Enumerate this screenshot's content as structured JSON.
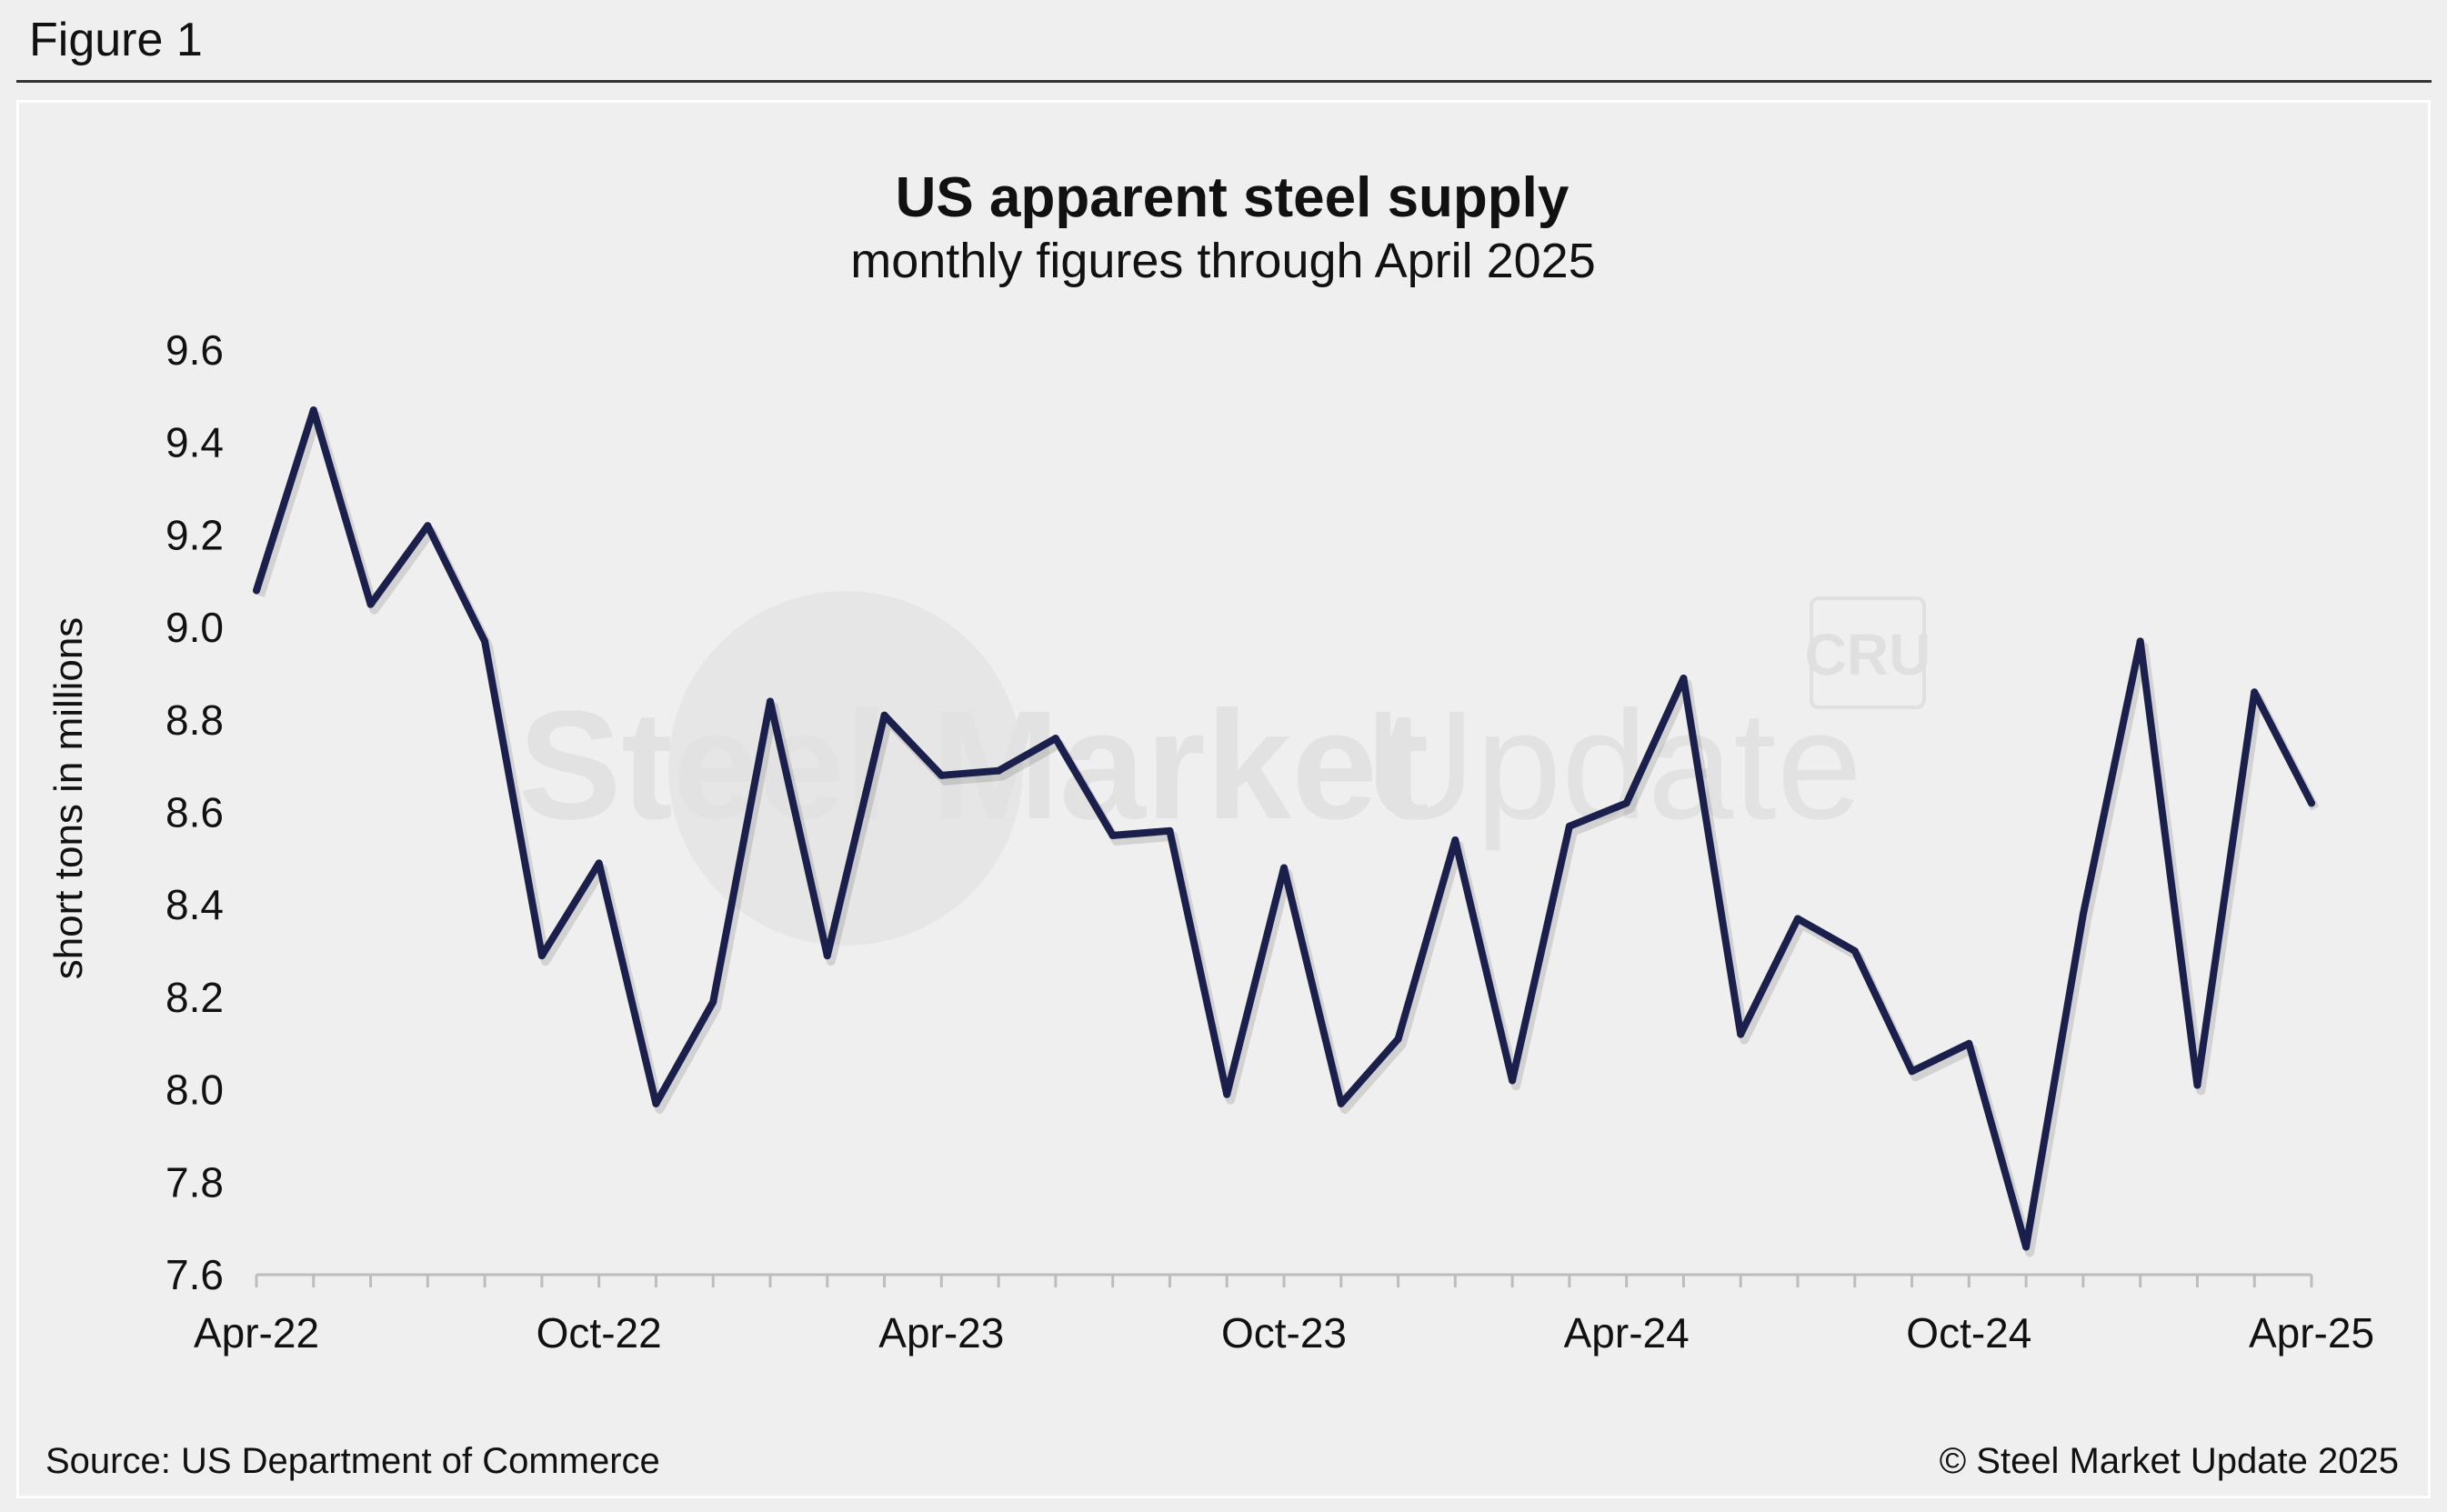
{
  "figure_label": "Figure 1",
  "watermark": {
    "text_bold": "Steel Market",
    "text_light": "Update",
    "badge": "CRU"
  },
  "footer": {
    "source": "Source: US Department of Commerce",
    "copyright": "© Steel Market Update 2025"
  },
  "colors": {
    "line": "#1b1f4b",
    "axis": "#bdbdbd",
    "background": "#efefef"
  },
  "chart_data": {
    "type": "line",
    "title": "US apparent steel supply",
    "subtitle": "monthly figures through April 2025",
    "xlabel": "",
    "ylabel": "short tons in millions",
    "ylim": [
      7.6,
      9.6
    ],
    "yticks": [
      9.6,
      9.4,
      9.2,
      9.0,
      8.8,
      8.6,
      8.4,
      8.2,
      8.0,
      7.8,
      7.6
    ],
    "ytick_labels": [
      "9.6",
      "9.4",
      "9.2",
      "9.0",
      "8.8",
      "8.6",
      "8.4",
      "8.2",
      "8.0",
      "7.8",
      "7.6"
    ],
    "xtick_labels": [
      "Apr-22",
      "Oct-22",
      "Apr-23",
      "Oct-23",
      "Apr-24",
      "Oct-24",
      "Apr-25"
    ],
    "xtick_indices": [
      0,
      6,
      12,
      18,
      24,
      30,
      36
    ],
    "grid": false,
    "legend": "none",
    "series": [
      {
        "name": "US apparent steel supply",
        "values": [
          9.08,
          9.47,
          9.05,
          9.22,
          8.97,
          8.29,
          8.49,
          7.97,
          8.19,
          8.84,
          8.29,
          8.81,
          8.68,
          8.69,
          8.76,
          8.55,
          8.56,
          7.99,
          8.48,
          7.97,
          8.11,
          8.54,
          8.02,
          8.57,
          8.62,
          8.89,
          8.12,
          8.37,
          8.3,
          8.04,
          8.1,
          7.66,
          8.38,
          8.97,
          8.01,
          8.86,
          8.62
        ]
      }
    ]
  }
}
